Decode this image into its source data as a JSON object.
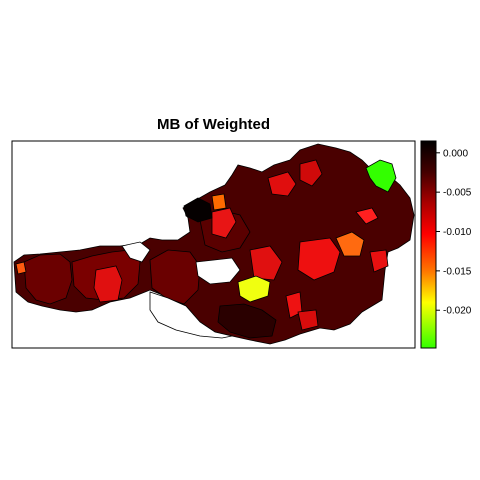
{
  "title": "MB of Weighted",
  "legend": {
    "max": 0.0015,
    "min": -0.0248,
    "ticks": [
      {
        "value": 0.0,
        "label": "0.000"
      },
      {
        "value": -0.005,
        "label": "-0.005"
      },
      {
        "value": -0.01,
        "label": "-0.010"
      },
      {
        "value": -0.015,
        "label": "-0.015"
      },
      {
        "value": -0.02,
        "label": "-0.020"
      }
    ],
    "colors": [
      "#33ff00",
      "#ffff00",
      "#ff7700",
      "#ff0000",
      "#aa0000",
      "#440000",
      "#000000"
    ]
  },
  "colors": {
    "border": "#000000",
    "no_data": "#ffffff"
  }
}
